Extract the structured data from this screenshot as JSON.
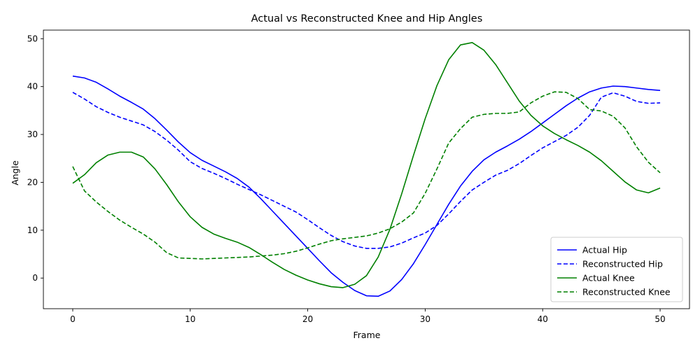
{
  "chart_data": {
    "type": "line",
    "title": "Actual vs Reconstructed Knee and Hip Angles",
    "xlabel": "Frame",
    "ylabel": "Angle",
    "xlim": [
      -2.5,
      52.5
    ],
    "ylim": [
      -6.4,
      51.8
    ],
    "xticks": [
      0,
      10,
      20,
      30,
      40,
      50
    ],
    "yticks": [
      0,
      10,
      20,
      30,
      40,
      50
    ],
    "grid": false,
    "legend_position": "bottom-right",
    "x": [
      0,
      1,
      2,
      3,
      4,
      5,
      6,
      7,
      8,
      9,
      10,
      11,
      12,
      13,
      14,
      15,
      16,
      17,
      18,
      19,
      20,
      21,
      22,
      23,
      24,
      25,
      26,
      27,
      28,
      29,
      30,
      31,
      32,
      33,
      34,
      35,
      36,
      37,
      38,
      39,
      40,
      41,
      42,
      43,
      44,
      45,
      46,
      47,
      48,
      49,
      50
    ],
    "series": [
      {
        "name": "Actual Hip",
        "color": "#0000ff",
        "dash": "solid",
        "values": [
          42.2,
          41.8,
          40.9,
          39.5,
          38.0,
          36.7,
          35.3,
          33.3,
          30.9,
          28.4,
          26.2,
          24.6,
          23.4,
          22.2,
          20.8,
          19.0,
          16.6,
          14.0,
          11.4,
          8.8,
          6.2,
          3.6,
          1.1,
          -0.9,
          -2.6,
          -3.7,
          -3.8,
          -2.7,
          -0.3,
          3.0,
          7.0,
          11.2,
          15.4,
          19.2,
          22.3,
          24.7,
          26.3,
          27.6,
          29.0,
          30.6,
          32.4,
          34.2,
          36.0,
          37.6,
          38.9,
          39.7,
          40.1,
          40.0,
          39.7,
          39.4,
          39.2
        ]
      },
      {
        "name": "Reconstructed Hip",
        "color": "#0000ff",
        "dash": "dashed",
        "values": [
          38.8,
          37.4,
          35.8,
          34.6,
          33.6,
          32.8,
          32.0,
          30.6,
          28.8,
          26.7,
          24.3,
          22.9,
          21.9,
          20.8,
          19.6,
          18.5,
          17.4,
          16.2,
          15.0,
          13.8,
          12.2,
          10.5,
          8.9,
          7.6,
          6.7,
          6.2,
          6.2,
          6.5,
          7.3,
          8.4,
          9.4,
          11.0,
          13.4,
          16.0,
          18.4,
          20.0,
          21.5,
          22.5,
          23.9,
          25.6,
          27.2,
          28.5,
          29.8,
          31.5,
          34.0,
          37.8,
          38.7,
          38.0,
          36.9,
          36.5,
          36.6
        ]
      },
      {
        "name": "Actual Knee",
        "color": "#008000",
        "dash": "solid",
        "values": [
          19.8,
          21.6,
          24.1,
          25.7,
          26.3,
          26.3,
          25.3,
          22.8,
          19.5,
          15.9,
          12.8,
          10.6,
          9.2,
          8.3,
          7.5,
          6.4,
          4.9,
          3.3,
          1.8,
          0.6,
          -0.4,
          -1.2,
          -1.8,
          -2.0,
          -1.3,
          0.5,
          4.4,
          10.2,
          17.6,
          25.6,
          33.3,
          40.2,
          45.6,
          48.7,
          49.2,
          47.6,
          44.6,
          40.8,
          37.0,
          34.0,
          31.8,
          30.2,
          28.9,
          27.7,
          26.3,
          24.5,
          22.3,
          20.1,
          18.4,
          17.8,
          18.8
        ]
      },
      {
        "name": "Reconstructed Knee",
        "color": "#008000",
        "dash": "dashed",
        "values": [
          23.3,
          18.2,
          15.9,
          13.9,
          12.1,
          10.6,
          9.2,
          7.5,
          5.3,
          4.2,
          4.1,
          4.0,
          4.1,
          4.2,
          4.3,
          4.4,
          4.6,
          4.8,
          5.1,
          5.6,
          6.3,
          7.1,
          7.8,
          8.2,
          8.5,
          8.8,
          9.4,
          10.3,
          11.7,
          13.6,
          17.7,
          22.8,
          28.2,
          31.2,
          33.6,
          34.2,
          34.4,
          34.4,
          34.7,
          36.6,
          38.0,
          38.9,
          38.8,
          37.5,
          35.2,
          34.9,
          33.8,
          31.4,
          27.4,
          24.2,
          22.0
        ]
      }
    ]
  }
}
